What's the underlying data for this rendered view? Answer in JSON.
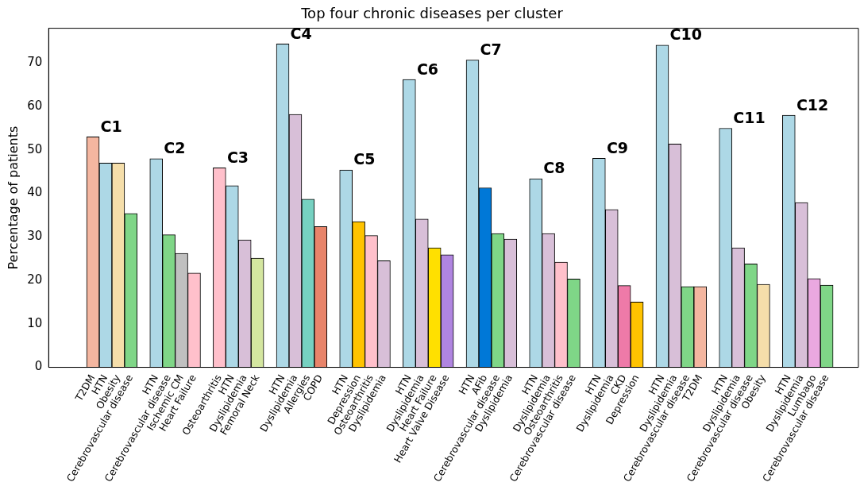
{
  "chart_data": {
    "type": "bar",
    "title": "Top four chronic diseases per cluster",
    "ylabel": "Percentage of patients",
    "categories": [
      null,
      null,
      null,
      "T2DM",
      "HTN",
      "Obesity",
      "Cerebrovascular disease",
      null,
      "HTN",
      "Cerebrovascular disease",
      "Ischemic CM",
      "Heart Failure",
      null,
      "Osteoarthritis",
      "HTN",
      "Dyslipidemia",
      "Femoral Neck",
      null,
      "HTN",
      "Dyslipidemia",
      "Allergies",
      "COPD",
      null,
      "HTN",
      "Depression",
      "Osteoarthritis",
      "Dyslipidemia",
      null,
      "HTN",
      "Dyslipidemia",
      "Heart Failure",
      "Heart Valve Disease",
      null,
      "HTN",
      "AFib",
      "Cerebrovascular disease",
      "Dyslipidemia",
      null,
      "HTN",
      "Dyslipidemia",
      "Osteoarthritis",
      "Cerebrovascular disease",
      null,
      "HTN",
      "Dyslipidemia",
      "CKD",
      "Depression",
      null,
      "HTN",
      "Dyslipidemia",
      "Cerebrovascular disease",
      "T2DM",
      null,
      "HTN",
      "Dyslipidemia",
      "Cerebrovascular disease",
      "Obesity",
      null,
      "HTN",
      "Dyslipidemia",
      "Lumbago",
      "Cerebrovascular disease",
      null,
      null
    ],
    "values": [
      null,
      null,
      null,
      53,
      47,
      47,
      35.4,
      null,
      48,
      30.5,
      26.2,
      21.7,
      null,
      45.9,
      41.8,
      29.3,
      25.1,
      null,
      74.4,
      58.2,
      38.7,
      32.4,
      null,
      45.4,
      33.5,
      30.3,
      24.5,
      null,
      66.2,
      34.1,
      27.5,
      25.9,
      null,
      70.7,
      41.3,
      30.8,
      29.5,
      null,
      43.4,
      30.8,
      24.2,
      20.3,
      null,
      48.1,
      36.3,
      18.8,
      15.0,
      null,
      74.1,
      51.4,
      18.6,
      18.6,
      null,
      55.0,
      27.5,
      23.8,
      19.1,
      null,
      58.0,
      37.9,
      20.4,
      18.9,
      null,
      null
    ],
    "colors": [
      null,
      null,
      null,
      "#f4b6a0",
      "#add8e6",
      "#f5deaa",
      "#7fd687",
      null,
      "#add8e6",
      "#7fd687",
      "#c0c0c0",
      "#ffc0cb",
      null,
      "#ffc0cb",
      "#add8e6",
      "#d8bfd8",
      "#d4e6a0",
      null,
      "#add8e6",
      "#d8bfd8",
      "#76d1c1",
      "#e8846a",
      null,
      "#add8e6",
      "#ffc300",
      "#ffc0cb",
      "#d8bfd8",
      null,
      "#add8e6",
      "#d8bfd8",
      "#ffe000",
      "#b085e0",
      null,
      "#add8e6",
      "#0078d7",
      "#7fd687",
      "#d8bfd8",
      null,
      "#add8e6",
      "#d8bfd8",
      "#ffc0cb",
      "#7fd687",
      null,
      "#add8e6",
      "#d8bfd8",
      "#ee7aa8",
      "#ffc300",
      null,
      "#add8e6",
      "#d8bfd8",
      "#7fd687",
      "#f4b6a0",
      null,
      "#add8e6",
      "#d8bfd8",
      "#7fd687",
      "#f5deaa",
      null,
      "#add8e6",
      "#d8bfd8",
      "#eaa8e0",
      "#7fd687",
      null,
      null
    ],
    "ylim": [
      0,
      78
    ],
    "yticks": [
      0,
      10,
      20,
      30,
      40,
      50,
      60,
      70
    ],
    "grid": false,
    "legend": false,
    "annotations": [
      "C1",
      "C2",
      "C3",
      "C4",
      "C5",
      "C6",
      "C7",
      "C8",
      "C9",
      "C10",
      "C11",
      "C12"
    ]
  }
}
